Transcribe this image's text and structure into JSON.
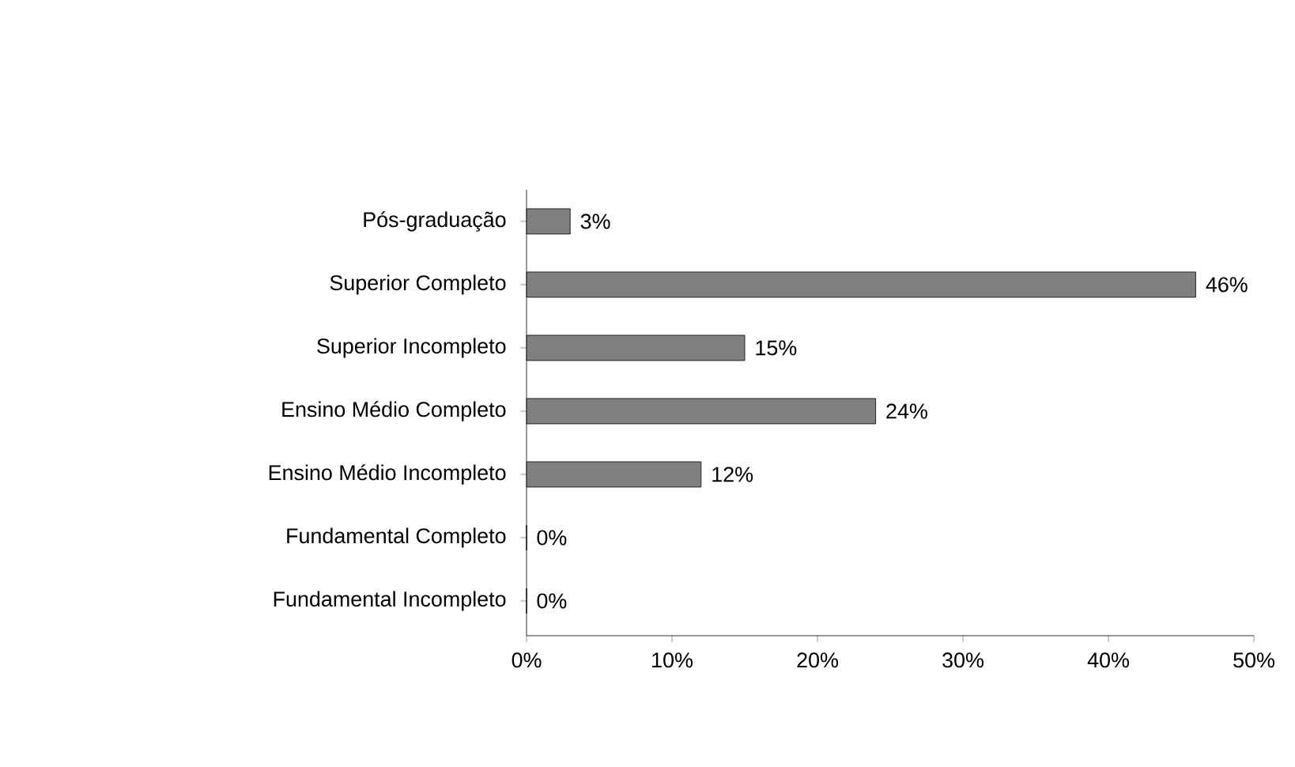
{
  "chart_data": {
    "type": "bar",
    "orientation": "horizontal",
    "categories": [
      "Pós-graduação",
      "Superior Completo",
      "Superior Incompleto",
      "Ensino Médio Completo",
      "Ensino Médio Incompleto",
      "Fundamental Completo",
      "Fundamental Incompleto"
    ],
    "values": [
      3,
      46,
      15,
      24,
      12,
      0,
      0
    ],
    "value_labels": [
      "3%",
      "46%",
      "15%",
      "24%",
      "12%",
      "0%",
      "0%"
    ],
    "color": "#808080",
    "xlim": [
      0,
      50
    ],
    "xticks": [
      {
        "value": 0,
        "label": "0%"
      },
      {
        "value": 10,
        "label": "10%"
      },
      {
        "value": 20,
        "label": "20%"
      },
      {
        "value": 30,
        "label": "30%"
      },
      {
        "value": 40,
        "label": "40%"
      },
      {
        "value": 50,
        "label": "50%"
      }
    ],
    "grid": false
  }
}
